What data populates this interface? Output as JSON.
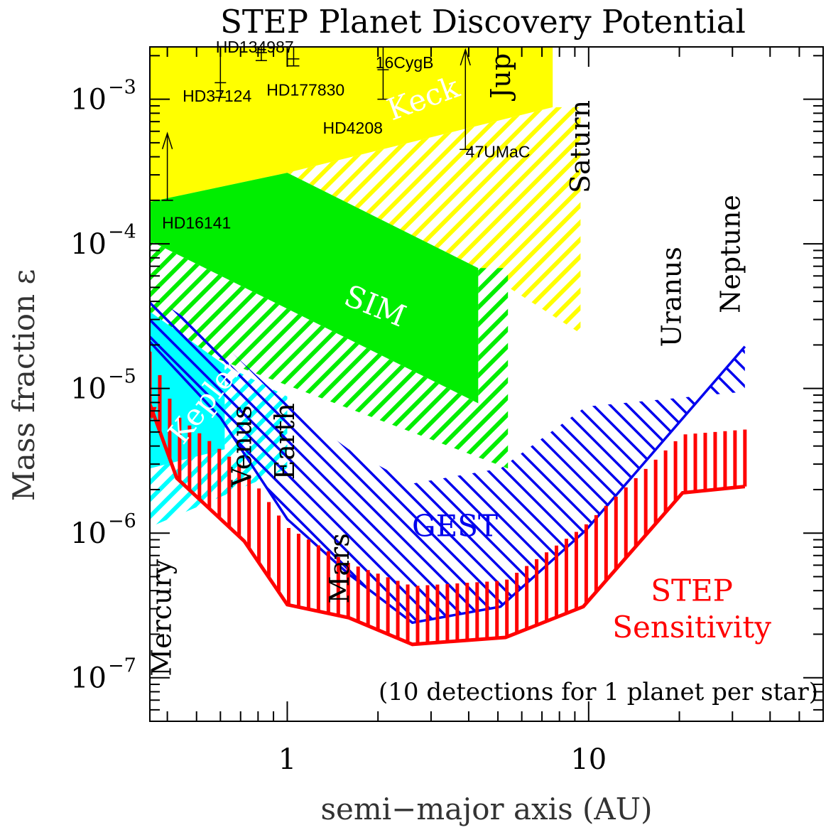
{
  "chart_data": {
    "type": "area",
    "title": "STEP Planet Discovery Potential",
    "xlabel": "semi−major axis (AU)",
    "ylabel": "Mass fraction ε",
    "x_scale": "log",
    "y_scale": "log",
    "xlim": [
      0.35,
      60
    ],
    "ylim": [
      5e-08,
      0.0023
    ],
    "x_ticks": [
      {
        "value": 1,
        "label": "1"
      },
      {
        "value": 10,
        "label": "10"
      }
    ],
    "y_ticks": [
      {
        "value": 0.001,
        "base": "10",
        "exp": "−3"
      },
      {
        "value": 0.0001,
        "base": "10",
        "exp": "−4"
      },
      {
        "value": 1e-05,
        "base": "10",
        "exp": "−5"
      },
      {
        "value": 1e-06,
        "base": "10",
        "exp": "−6"
      },
      {
        "value": 1e-07,
        "base": "10",
        "exp": "−7"
      }
    ],
    "grid": false,
    "colors": {
      "keck": "#ffff00",
      "sim": "#00ee00",
      "cyan": "#00ffff",
      "gest": "#0000ee",
      "step": "#ff0000"
    },
    "regions": [
      {
        "name": "Keck",
        "color": "keck",
        "solid": [
          [
            0.35,
            0.0023
          ],
          [
            7.6,
            0.0023
          ],
          [
            7.6,
            0.00088
          ],
          [
            1.0,
            0.00031
          ],
          [
            0.35,
            0.000195
          ]
        ],
        "hatch": [
          [
            1.0,
            0.00031
          ],
          [
            7.6,
            0.00088
          ],
          [
            9.4,
            0.00088
          ],
          [
            9.4,
            2.4e-05
          ],
          [
            4.3,
            6.8e-05
          ]
        ]
      },
      {
        "name": "SIM",
        "color": "sim",
        "solid": [
          [
            0.35,
            0.000195
          ],
          [
            1.0,
            0.00031
          ],
          [
            4.3,
            6.8e-05
          ],
          [
            4.3,
            7.9e-06
          ],
          [
            0.35,
            0.000105
          ]
        ],
        "hatch": [
          [
            0.35,
            0.000105
          ],
          [
            4.3,
            7.9e-06
          ],
          [
            4.3,
            6.8e-05
          ],
          [
            5.4,
            6.8e-05
          ],
          [
            5.4,
            2.8e-06
          ],
          [
            0.35,
            2.4e-05
          ]
        ]
      },
      {
        "name": "Kepler",
        "color": "cyan",
        "solid": [
          [
            0.35,
            3.4e-05
          ],
          [
            0.62,
            1.45e-05
          ],
          [
            0.62,
            3.8e-06
          ],
          [
            0.35,
            2.8e-06
          ]
        ],
        "hatch": [
          [
            0.35,
            2.8e-06
          ],
          [
            0.62,
            3.8e-06
          ],
          [
            0.62,
            1.45e-05
          ],
          [
            1.0,
            8.8e-06
          ],
          [
            1.0,
            2.8e-06
          ],
          [
            0.35,
            1.1e-06
          ]
        ]
      },
      {
        "name": "GEST",
        "color": "gest",
        "boundary_lower": [
          [
            0.35,
            2.1e-05
          ],
          [
            0.6,
            6.3e-06
          ],
          [
            1.0,
            1.25e-06
          ],
          [
            1.6,
            5.2e-07
          ],
          [
            2.6,
            2.4e-07
          ],
          [
            5.1,
            3.1e-07
          ],
          [
            9.8,
            1.05e-06
          ],
          [
            33,
            1.95e-05
          ]
        ],
        "hatch_to": [
          [
            0.35,
            4.5e-05
          ],
          [
            0.6,
            2.1e-05
          ],
          [
            1.0,
            7.8e-06
          ],
          [
            1.6,
            3.8e-06
          ],
          [
            2.6,
            2.2e-06
          ],
          [
            5.1,
            2.8e-06
          ],
          [
            9.8,
            7.5e-06
          ],
          [
            33,
            9.5e-06
          ]
        ]
      },
      {
        "name": "STEP Sensitivity",
        "color": "step",
        "boundary_lower": [
          [
            0.35,
            7.8e-06
          ],
          [
            0.43,
            2.4e-06
          ],
          [
            0.72,
            8.8e-07
          ],
          [
            1.0,
            3.2e-07
          ],
          [
            1.6,
            2.6e-07
          ],
          [
            2.6,
            1.7e-07
          ],
          [
            5.3,
            1.9e-07
          ],
          [
            9.6,
            3.1e-07
          ],
          [
            20.5,
            1.9e-06
          ],
          [
            33,
            2.1e-06
          ]
        ],
        "hatch_to": [
          [
            0.35,
            1.8e-05
          ],
          [
            0.43,
            6.5e-06
          ],
          [
            0.72,
            2.8e-06
          ],
          [
            1.0,
            1.1e-06
          ],
          [
            1.6,
            6.2e-07
          ],
          [
            2.6,
            4.3e-07
          ],
          [
            5.3,
            4.7e-07
          ],
          [
            9.6,
            1.1e-06
          ],
          [
            20.5,
            4.8e-06
          ],
          [
            33,
            5.2e-06
          ]
        ]
      }
    ],
    "region_labels": [
      {
        "text": "Keck",
        "color": "#ffffff",
        "x": 2.9,
        "y": 0.00087,
        "angle": -20
      },
      {
        "text": "SIM",
        "color": "#ffffff",
        "x": 1.9,
        "y": 3.2e-05,
        "angle": 22
      },
      {
        "text": "Kepler",
        "color": "#ffffff",
        "x": 0.57,
        "y": 7.5e-06,
        "angle": -52
      },
      {
        "text": "GEST",
        "color": "#0000ee",
        "x": 3.6,
        "y": 9.5e-07,
        "angle": 0
      },
      {
        "text": "STEP",
        "color": "#ff0000",
        "x": 22,
        "y": 3.4e-07,
        "angle": 0
      },
      {
        "text": "Sensitivity",
        "color": "#ff0000",
        "x": 22,
        "y": 1.9e-07,
        "angle": 0
      }
    ],
    "planets": [
      {
        "name": "Mercury",
        "x": 0.39,
        "y": 2.6e-07
      },
      {
        "name": "Venus",
        "x": 0.72,
        "y": 4e-06
      },
      {
        "name": "Earth",
        "x": 1.0,
        "y": 4.3e-06
      },
      {
        "name": "Mars",
        "x": 1.52,
        "y": 5.7e-07
      },
      {
        "name": "Jup",
        "x": 5.2,
        "y": 0.00145
      },
      {
        "name": "Saturn",
        "x": 9.55,
        "y": 0.00047
      },
      {
        "name": "Uranus",
        "x": 19.2,
        "y": 4.3e-05
      },
      {
        "name": "Neptune",
        "x": 30.1,
        "y": 8.5e-05
      }
    ],
    "exoplanets": [
      {
        "name": "HD37124",
        "x": 0.585,
        "y": 0.00096
      },
      {
        "name": "HD134987",
        "x": 0.78,
        "y": 0.0021
      },
      {
        "name": "HD177830",
        "x": 1.15,
        "y": 0.00106
      },
      {
        "name": "HD4208",
        "x": 1.65,
        "y": 0.00058
      },
      {
        "name": "16CygB",
        "x": 2.45,
        "y": 0.00164
      },
      {
        "name": "47UMaC",
        "x": 5.0,
        "y": 0.000395
      },
      {
        "name": "HD16141",
        "x": 0.5,
        "y": 0.000128
      }
    ],
    "exo_markers": [
      {
        "x": 0.6,
        "y_center": 0.0013,
        "y_low": 0.00103,
        "y_high": 0.0023,
        "arrow": false
      },
      {
        "x": 0.4,
        "y_center": 0.0002,
        "y_low": 0.0002,
        "y_high": 0.00058,
        "arrow": true
      },
      {
        "x": 1.05,
        "y_center": 0.0019,
        "y_low": 0.0017,
        "y_high": 0.0023,
        "arrow": false
      },
      {
        "x": 0.82,
        "y_center": 0.0021,
        "y_low": 0.00185,
        "y_high": 0.0023,
        "arrow": false
      },
      {
        "x": 2.08,
        "y_center": 0.0016,
        "y_low": 0.001,
        "y_high": 0.0023,
        "arrow": false
      },
      {
        "x": 3.9,
        "y_center": 0.00045,
        "y_low": 0.00045,
        "y_high": 0.0022,
        "arrow": true
      }
    ],
    "annotation": "(10 detections for 1 planet per star)"
  }
}
